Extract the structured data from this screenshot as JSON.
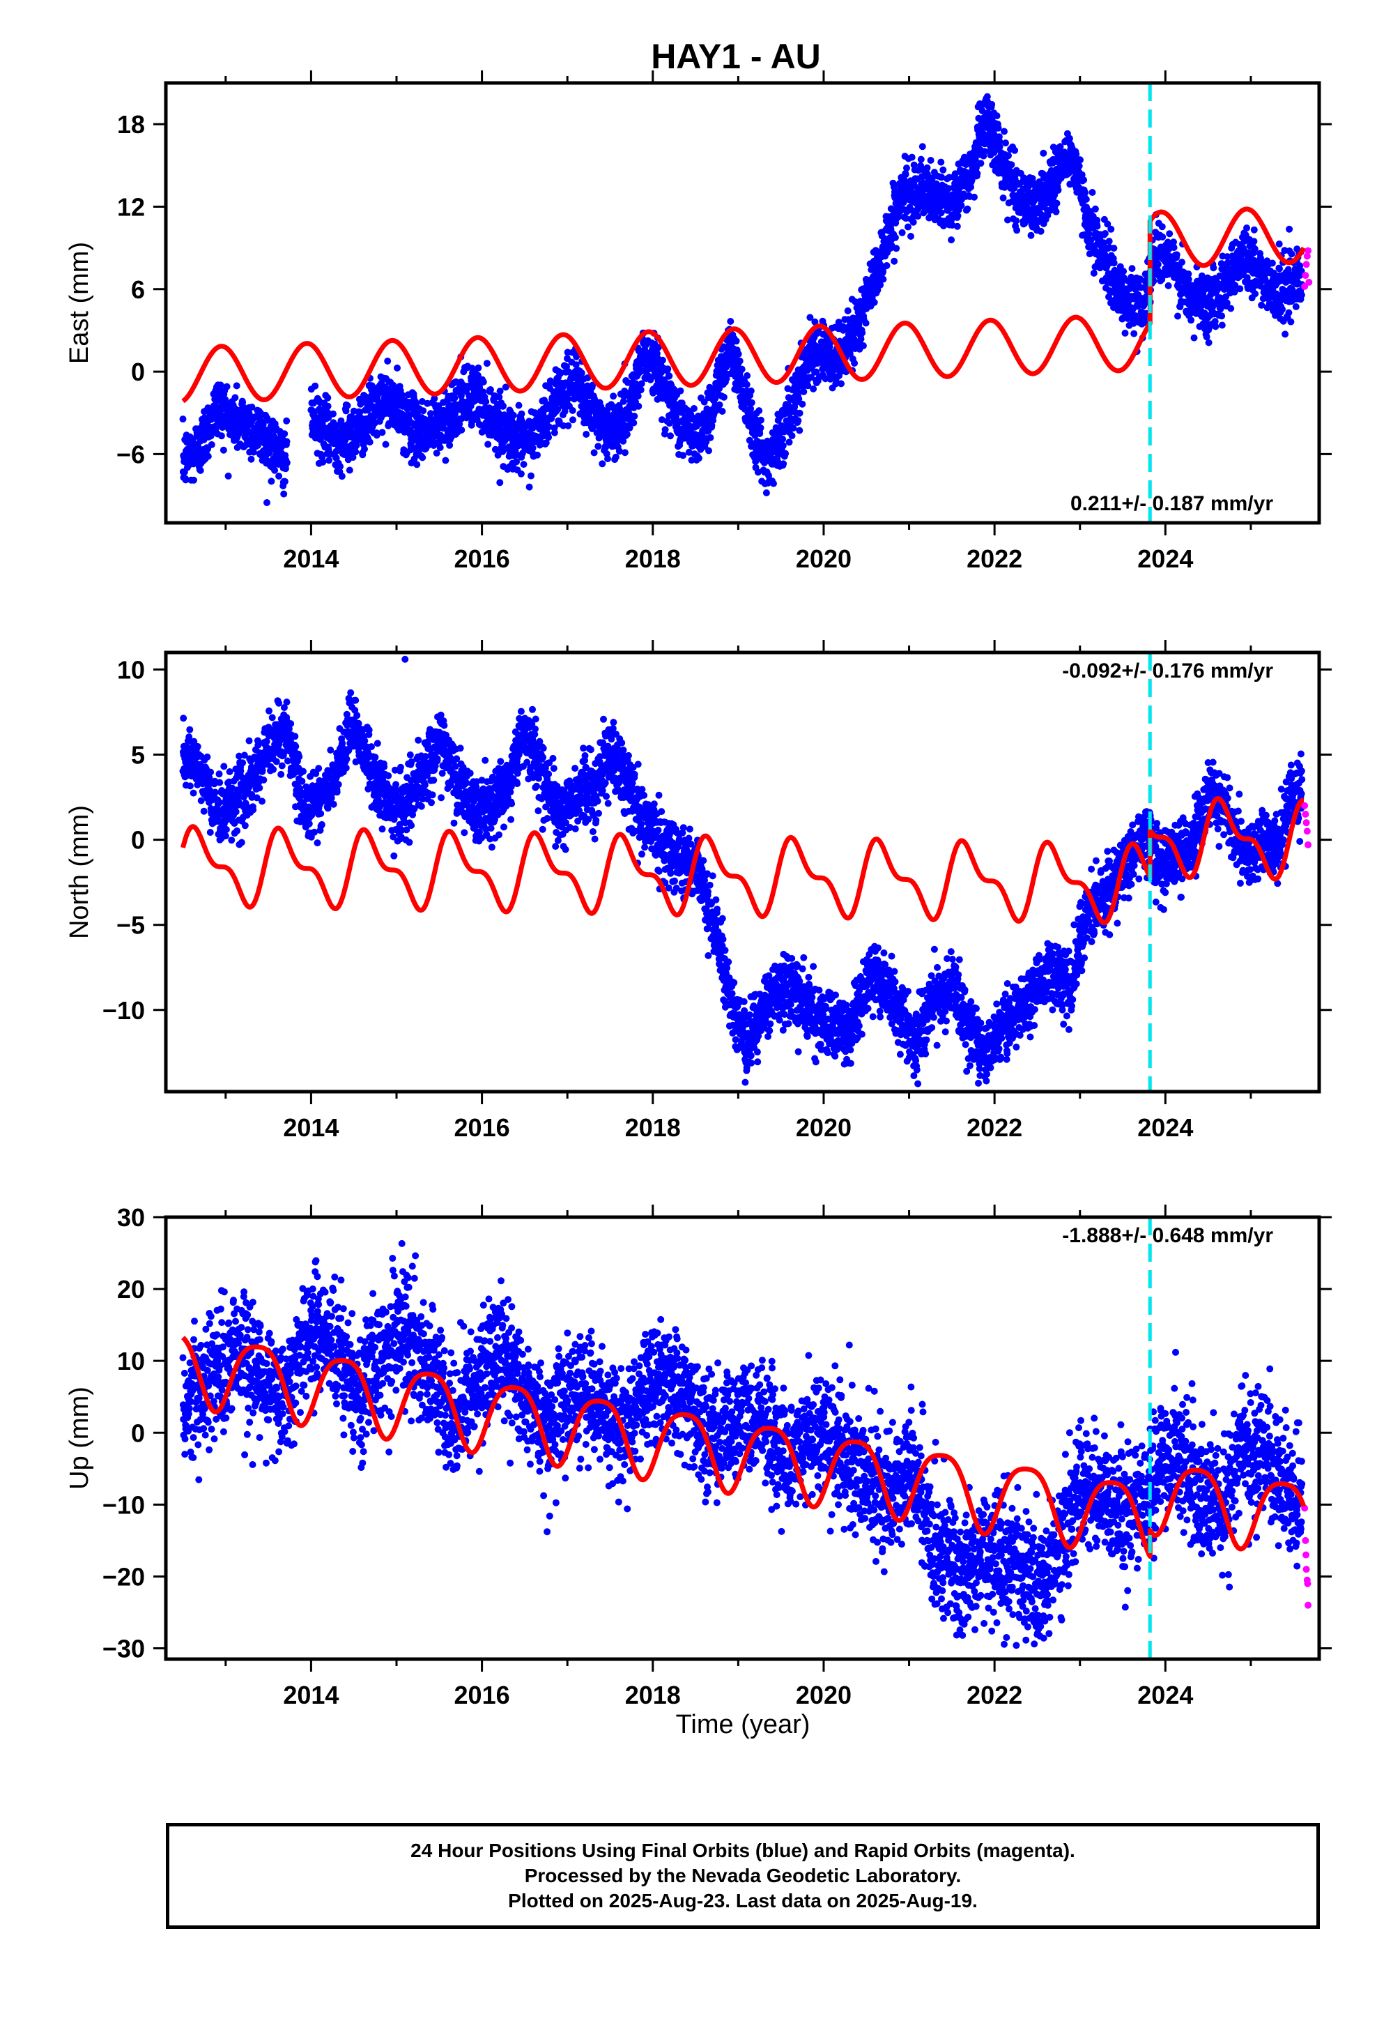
{
  "title": "HAY1 - AU",
  "colors": {
    "final_orbits": "#0000ff",
    "rapid_orbits": "#ff00ff",
    "model_fit": "#ff0000",
    "equipment_change": "#00e5ee",
    "frame": "#000000"
  },
  "xaxis": {
    "label": "Time (year)",
    "ticks": [
      "2014",
      "2016",
      "2018",
      "2020",
      "2022",
      "2024"
    ]
  },
  "chart_data": [
    {
      "type": "scatter",
      "name": "east",
      "ylabel": "East (mm)",
      "xlim": [
        2012.3,
        2025.8
      ],
      "ylim": [
        -11,
        21
      ],
      "yticks": [
        -6,
        0,
        6,
        12,
        18
      ],
      "ytick_labels": [
        "−6",
        "0",
        "6",
        "12",
        "18"
      ],
      "rate_label": "0.211+/- 0.187 mm/yr",
      "rate_position": "bottom-right",
      "grid": false,
      "discontinuity_x": 2023.82,
      "final_trend": [
        [
          2012.5,
          -6.5
        ],
        [
          2012.7,
          -5.5
        ],
        [
          2012.9,
          -2.5
        ],
        [
          2013.1,
          -3.5
        ],
        [
          2013.3,
          -4.0
        ],
        [
          2013.5,
          -5.0
        ],
        [
          2013.7,
          -6.5
        ],
        [
          2013.9,
          -2.5
        ],
        [
          2014.1,
          -4.0
        ],
        [
          2014.3,
          -5.0
        ],
        [
          2014.5,
          -4.5
        ],
        [
          2014.7,
          -3.0
        ],
        [
          2014.9,
          -2.0
        ],
        [
          2015.1,
          -3.5
        ],
        [
          2015.3,
          -4.5
        ],
        [
          2015.5,
          -4.0
        ],
        [
          2015.7,
          -2.5
        ],
        [
          2015.9,
          -1.5
        ],
        [
          2016.1,
          -3.0
        ],
        [
          2016.3,
          -4.5
        ],
        [
          2016.5,
          -5.5
        ],
        [
          2016.7,
          -4.0
        ],
        [
          2016.9,
          -1.5
        ],
        [
          2017.1,
          -1.0
        ],
        [
          2017.3,
          -3.0
        ],
        [
          2017.5,
          -4.5
        ],
        [
          2017.7,
          -3.0
        ],
        [
          2017.9,
          1.5
        ],
        [
          2018.1,
          -0.5
        ],
        [
          2018.3,
          -3.5
        ],
        [
          2018.5,
          -5.0
        ],
        [
          2018.7,
          -2.5
        ],
        [
          2018.9,
          2.0
        ],
        [
          2019.1,
          -2.0
        ],
        [
          2019.3,
          -6.5
        ],
        [
          2019.5,
          -5.0
        ],
        [
          2019.7,
          -1.0
        ],
        [
          2019.9,
          2.0
        ],
        [
          2020.1,
          0.5
        ],
        [
          2020.3,
          2.0
        ],
        [
          2020.5,
          5.0
        ],
        [
          2020.7,
          9.0
        ],
        [
          2020.9,
          12.5
        ],
        [
          2021.1,
          13.5
        ],
        [
          2021.3,
          12.5
        ],
        [
          2021.5,
          12.5
        ],
        [
          2021.7,
          14.0
        ],
        [
          2021.9,
          18.5
        ],
        [
          2022.1,
          15.0
        ],
        [
          2022.3,
          12.5
        ],
        [
          2022.5,
          12.0
        ],
        [
          2022.7,
          14.0
        ],
        [
          2022.9,
          16.0
        ],
        [
          2023.1,
          11.0
        ],
        [
          2023.3,
          8.0
        ],
        [
          2023.5,
          5.5
        ],
        [
          2023.7,
          4.5
        ],
        [
          2023.8,
          6.5
        ],
        [
          2023.9,
          9.0
        ],
        [
          2024.1,
          7.5
        ],
        [
          2024.3,
          5.0
        ],
        [
          2024.5,
          5.0
        ],
        [
          2024.7,
          6.5
        ],
        [
          2024.9,
          8.5
        ],
        [
          2025.1,
          7.0
        ],
        [
          2025.3,
          6.0
        ],
        [
          2025.5,
          6.5
        ],
        [
          2025.6,
          6.5
        ]
      ],
      "noise_mm": 1.1,
      "rapid_points": [
        [
          2025.63,
          6.2
        ],
        [
          2025.64,
          7.0
        ],
        [
          2025.65,
          7.8
        ],
        [
          2025.66,
          8.4
        ],
        [
          2025.67,
          8.8
        ],
        [
          2025.68,
          6.5
        ]
      ],
      "model": {
        "segments": [
          {
            "from": 2012.5,
            "to": 2023.82,
            "offset": -0.25,
            "offset_ref": 2012.5,
            "rate": 0.211,
            "annual_amp": 2.0,
            "annual_phase": 0.3,
            "semiannual_amp": 0.0,
            "semiannual_phase": 0.0
          },
          {
            "from": 2023.82,
            "to": 2025.62,
            "offset": 7.2,
            "offset_ref": 2012.5,
            "rate": 0.211,
            "annual_amp": 2.0,
            "annual_phase": 0.3,
            "semiannual_amp": 0.0,
            "semiannual_phase": 0.0
          }
        ]
      }
    },
    {
      "type": "scatter",
      "name": "north",
      "ylabel": "North (mm)",
      "xlim": [
        2012.3,
        2025.8
      ],
      "ylim": [
        -14.8,
        11
      ],
      "yticks": [
        -10,
        -5,
        0,
        5,
        10
      ],
      "ytick_labels": [
        "−10",
        "−5",
        "0",
        "5",
        "10"
      ],
      "rate_label": "-0.092+/- 0.176 mm/yr",
      "rate_position": "top-right",
      "grid": false,
      "discontinuity_x": 2023.82,
      "final_trend": [
        [
          2012.5,
          4.5
        ],
        [
          2012.7,
          4.0
        ],
        [
          2012.9,
          1.5
        ],
        [
          2013.1,
          2.5
        ],
        [
          2013.3,
          3.0
        ],
        [
          2013.5,
          5.5
        ],
        [
          2013.7,
          6.5
        ],
        [
          2013.9,
          2.0
        ],
        [
          2014.1,
          2.5
        ],
        [
          2014.3,
          3.5
        ],
        [
          2014.5,
          7.0
        ],
        [
          2014.7,
          4.0
        ],
        [
          2014.9,
          2.0
        ],
        [
          2015.1,
          2.0
        ],
        [
          2015.3,
          3.5
        ],
        [
          2015.5,
          6.0
        ],
        [
          2015.7,
          3.5
        ],
        [
          2015.9,
          1.5
        ],
        [
          2016.1,
          2.0
        ],
        [
          2016.3,
          3.0
        ],
        [
          2016.5,
          6.5
        ],
        [
          2016.7,
          4.0
        ],
        [
          2016.9,
          1.5
        ],
        [
          2017.1,
          2.5
        ],
        [
          2017.3,
          3.0
        ],
        [
          2017.5,
          5.0
        ],
        [
          2017.7,
          3.5
        ],
        [
          2017.9,
          1.0
        ],
        [
          2018.1,
          0.0
        ],
        [
          2018.3,
          -1.0
        ],
        [
          2018.5,
          -1.5
        ],
        [
          2018.7,
          -4.5
        ],
        [
          2018.9,
          -9.0
        ],
        [
          2019.1,
          -12.0
        ],
        [
          2019.3,
          -10.0
        ],
        [
          2019.5,
          -8.5
        ],
        [
          2019.7,
          -9.0
        ],
        [
          2019.9,
          -10.5
        ],
        [
          2020.1,
          -11.0
        ],
        [
          2020.3,
          -11.5
        ],
        [
          2020.5,
          -8.0
        ],
        [
          2020.7,
          -8.5
        ],
        [
          2020.9,
          -10.5
        ],
        [
          2021.1,
          -12.0
        ],
        [
          2021.3,
          -9.5
        ],
        [
          2021.5,
          -8.5
        ],
        [
          2021.7,
          -11.0
        ],
        [
          2021.9,
          -12.5
        ],
        [
          2022.1,
          -11.0
        ],
        [
          2022.3,
          -10.0
        ],
        [
          2022.5,
          -8.5
        ],
        [
          2022.7,
          -7.5
        ],
        [
          2022.9,
          -9.0
        ],
        [
          2023.0,
          -5.5
        ],
        [
          2023.2,
          -3.5
        ],
        [
          2023.4,
          -2.5
        ],
        [
          2023.6,
          -0.5
        ],
        [
          2023.8,
          0.5
        ],
        [
          2023.9,
          -1.5
        ],
        [
          2024.1,
          -1.0
        ],
        [
          2024.3,
          -0.5
        ],
        [
          2024.5,
          2.5
        ],
        [
          2024.7,
          2.0
        ],
        [
          2024.9,
          -1.0
        ],
        [
          2025.1,
          0.0
        ],
        [
          2025.3,
          -0.5
        ],
        [
          2025.5,
          2.5
        ],
        [
          2025.6,
          3.0
        ]
      ],
      "noise_mm": 0.95,
      "outliers": [
        [
          2015.1,
          10.6
        ]
      ],
      "rapid_points": [
        [
          2025.63,
          2.0
        ],
        [
          2025.64,
          1.5
        ],
        [
          2025.65,
          1.0
        ],
        [
          2025.66,
          0.5
        ],
        [
          2025.67,
          -0.3
        ]
      ],
      "model": {
        "segments": [
          {
            "from": 2012.5,
            "to": 2023.82,
            "offset": -1.55,
            "offset_ref": 2012.5,
            "rate": -0.092,
            "annual_amp": 1.8,
            "annual_phase": 0.55,
            "semiannual_amp": 0.9,
            "semiannual_phase": 0.1
          },
          {
            "from": 2023.82,
            "to": 2025.62,
            "offset": 1.2,
            "offset_ref": 2012.5,
            "rate": -0.092,
            "annual_amp": 1.8,
            "annual_phase": 0.55,
            "semiannual_amp": 0.9,
            "semiannual_phase": 0.1
          }
        ]
      }
    },
    {
      "type": "scatter",
      "name": "up",
      "ylabel": "Up (mm)",
      "xlim": [
        2012.3,
        2025.8
      ],
      "ylim": [
        -31.5,
        30
      ],
      "yticks": [
        -30,
        -20,
        -10,
        0,
        10,
        20,
        30
      ],
      "ytick_labels": [
        "−30",
        "−20",
        "−10",
        "0",
        "10",
        "20",
        "30"
      ],
      "rate_label": "-1.888+/- 0.648 mm/yr",
      "rate_position": "top-right",
      "grid": false,
      "discontinuity_x": 2023.82,
      "final_trend": [
        [
          2012.5,
          2.0
        ],
        [
          2012.8,
          8.0
        ],
        [
          2013.1,
          12.0
        ],
        [
          2013.4,
          8.0
        ],
        [
          2013.7,
          5.0
        ],
        [
          2014.0,
          15.0
        ],
        [
          2014.3,
          12.0
        ],
        [
          2014.6,
          5.0
        ],
        [
          2014.9,
          12.0
        ],
        [
          2015.1,
          15.0
        ],
        [
          2015.4,
          8.0
        ],
        [
          2015.7,
          2.0
        ],
        [
          2016.0,
          8.0
        ],
        [
          2016.2,
          12.0
        ],
        [
          2016.5,
          5.0
        ],
        [
          2016.8,
          0.0
        ],
        [
          2017.0,
          6.0
        ],
        [
          2017.3,
          5.0
        ],
        [
          2017.6,
          0.0
        ],
        [
          2017.9,
          5.0
        ],
        [
          2018.1,
          8.0
        ],
        [
          2018.4,
          4.0
        ],
        [
          2018.7,
          -2.0
        ],
        [
          2019.0,
          3.0
        ],
        [
          2019.3,
          2.0
        ],
        [
          2019.6,
          -4.0
        ],
        [
          2019.9,
          0.0
        ],
        [
          2020.2,
          -2.0
        ],
        [
          2020.5,
          -7.0
        ],
        [
          2020.8,
          -9.0
        ],
        [
          2021.0,
          -5.0
        ],
        [
          2021.3,
          -15.0
        ],
        [
          2021.6,
          -20.0
        ],
        [
          2021.9,
          -16.0
        ],
        [
          2022.2,
          -18.0
        ],
        [
          2022.5,
          -22.0
        ],
        [
          2022.8,
          -16.0
        ],
        [
          2023.0,
          -7.0
        ],
        [
          2023.3,
          -9.0
        ],
        [
          2023.6,
          -12.0
        ],
        [
          2023.8,
          -8.0
        ],
        [
          2024.1,
          -2.0
        ],
        [
          2024.4,
          -8.0
        ],
        [
          2024.7,
          -10.0
        ],
        [
          2024.9,
          -1.0
        ],
        [
          2025.2,
          -4.0
        ],
        [
          2025.5,
          -9.0
        ],
        [
          2025.6,
          -10.0
        ]
      ],
      "noise_mm": 4.2,
      "rapid_points": [
        [
          2025.63,
          -10.5
        ],
        [
          2025.64,
          -15.0
        ],
        [
          2025.645,
          -17.0
        ],
        [
          2025.65,
          -19.0
        ],
        [
          2025.66,
          -20.5
        ],
        [
          2025.665,
          -21.0
        ],
        [
          2025.67,
          -24.0
        ]
      ],
      "model": {
        "segments": [
          {
            "from": 2012.5,
            "to": 2023.82,
            "offset": 9.6,
            "offset_ref": 2012.5,
            "rate": -1.888,
            "annual_amp": 5.0,
            "annual_phase": 0.87,
            "semiannual_amp": 1.0,
            "semiannual_phase": 0.0
          },
          {
            "from": 2023.82,
            "to": 2025.62,
            "offset": 13.2,
            "offset_ref": 2012.5,
            "rate": -1.888,
            "annual_amp": 5.0,
            "annual_phase": 0.87,
            "semiannual_amp": 1.0,
            "semiannual_phase": 0.0
          }
        ]
      }
    }
  ],
  "footer": {
    "line1": "24 Hour Positions Using Final Orbits (blue) and Rapid Orbits (magenta).",
    "line2": "Processed by the Nevada Geodetic Laboratory.",
    "line3": "Plotted on 2025-Aug-23. Last data on 2025-Aug-19."
  }
}
